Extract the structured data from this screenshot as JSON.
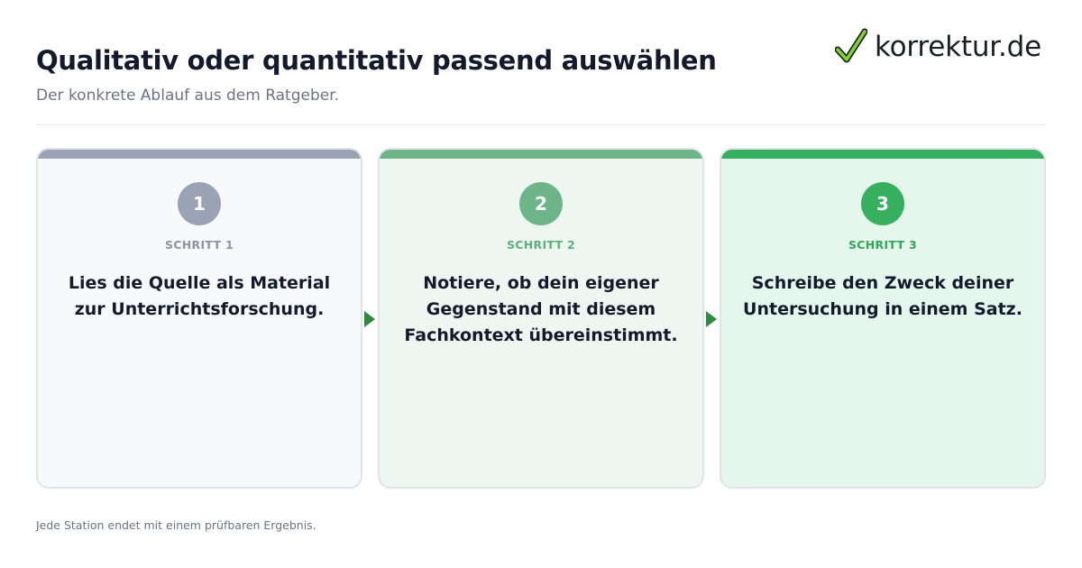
{
  "header": {
    "title": "Qualitativ oder quantitativ passend auswählen",
    "subtitle": "Der konkrete Ablauf aus dem Ratgeber."
  },
  "logo": {
    "icon": "checkmark-icon",
    "text": "korrektur.de",
    "check_color": "#7fd32b"
  },
  "steps": [
    {
      "number": "1",
      "label": "SCHRITT 1",
      "text": "Lies die Quelle als Material zur Unterrichtsforschung.",
      "accent": "#9aa3b3"
    },
    {
      "number": "2",
      "label": "SCHRITT 2",
      "text": "Notiere, ob dein eigener Gegenstand mit diesem Fachkontext übereinstimmt.",
      "accent": "#6db588"
    },
    {
      "number": "3",
      "label": "SCHRITT 3",
      "text": "Schreibe den Zweck deiner Untersuchung in einem Satz.",
      "accent": "#36b05e"
    }
  ],
  "connectors": {
    "icon": "arrow-right-icon",
    "color": "#2e8b3e"
  },
  "footer": {
    "note": "Jede Station endet mit einem prüfbaren Ergebnis."
  }
}
